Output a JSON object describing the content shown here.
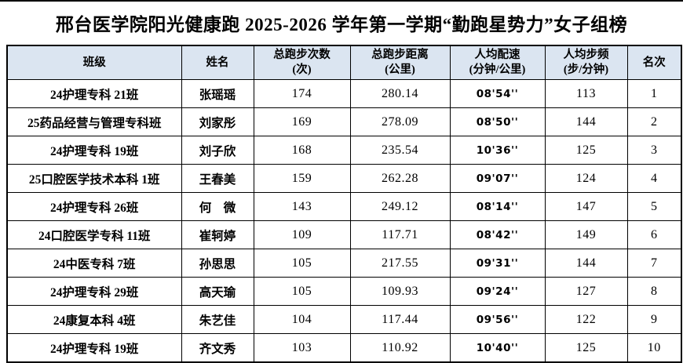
{
  "title": "邢台医学院阳光健康跑 2025-2026 学年第一学期“勤跑星势力”女子组榜",
  "colors": {
    "header_bg": "#dbe5f1",
    "border": "#000000",
    "text": "#000000",
    "page_bg": "#ffffff"
  },
  "table": {
    "headers": {
      "class": "班级",
      "name": "姓名",
      "runs": "总跑步次数",
      "runs_unit": "(次)",
      "distance": "总跑步距离",
      "distance_unit": "(公里)",
      "pace": "人均配速",
      "pace_unit": "(分钟/公里)",
      "cadence": "人均步频",
      "cadence_unit": "(步/分钟)",
      "rank": "名次"
    },
    "rows": [
      {
        "class": "24护理专科 21班",
        "name": "张瑶瑶",
        "runs": "174",
        "distance": "280.14",
        "pace": "08'54''",
        "cadence": "113",
        "rank": "1"
      },
      {
        "class": "25药品经营与管理专科班",
        "name": "刘家彤",
        "runs": "169",
        "distance": "278.09",
        "pace": "08'50''",
        "cadence": "144",
        "rank": "2"
      },
      {
        "class": "24护理专科 19班",
        "name": "刘子欣",
        "runs": "168",
        "distance": "235.54",
        "pace": "10'36''",
        "cadence": "125",
        "rank": "3"
      },
      {
        "class": "25口腔医学技术本科 1班",
        "name": "王春美",
        "runs": "159",
        "distance": "262.28",
        "pace": "09'07''",
        "cadence": "124",
        "rank": "4"
      },
      {
        "class": "24护理专科 26班",
        "name": "何　微",
        "runs": "143",
        "distance": "249.12",
        "pace": "08'14''",
        "cadence": "147",
        "rank": "5"
      },
      {
        "class": "24口腔医学专科 11班",
        "name": "崔轲婷",
        "runs": "109",
        "distance": "117.71",
        "pace": "08'42''",
        "cadence": "149",
        "rank": "6"
      },
      {
        "class": "24中医专科 7班",
        "name": "孙思思",
        "runs": "105",
        "distance": "217.55",
        "pace": "09'31''",
        "cadence": "144",
        "rank": "7"
      },
      {
        "class": "24护理专科 29班",
        "name": "高天瑜",
        "runs": "105",
        "distance": "109.93",
        "pace": "09'24''",
        "cadence": "127",
        "rank": "8"
      },
      {
        "class": "24康复本科 4班",
        "name": "朱艺佳",
        "runs": "104",
        "distance": "117.44",
        "pace": "09'56''",
        "cadence": "122",
        "rank": "9"
      },
      {
        "class": "24护理专科 19班",
        "name": "齐文秀",
        "runs": "103",
        "distance": "110.92",
        "pace": "10'40''",
        "cadence": "125",
        "rank": "10"
      }
    ]
  }
}
